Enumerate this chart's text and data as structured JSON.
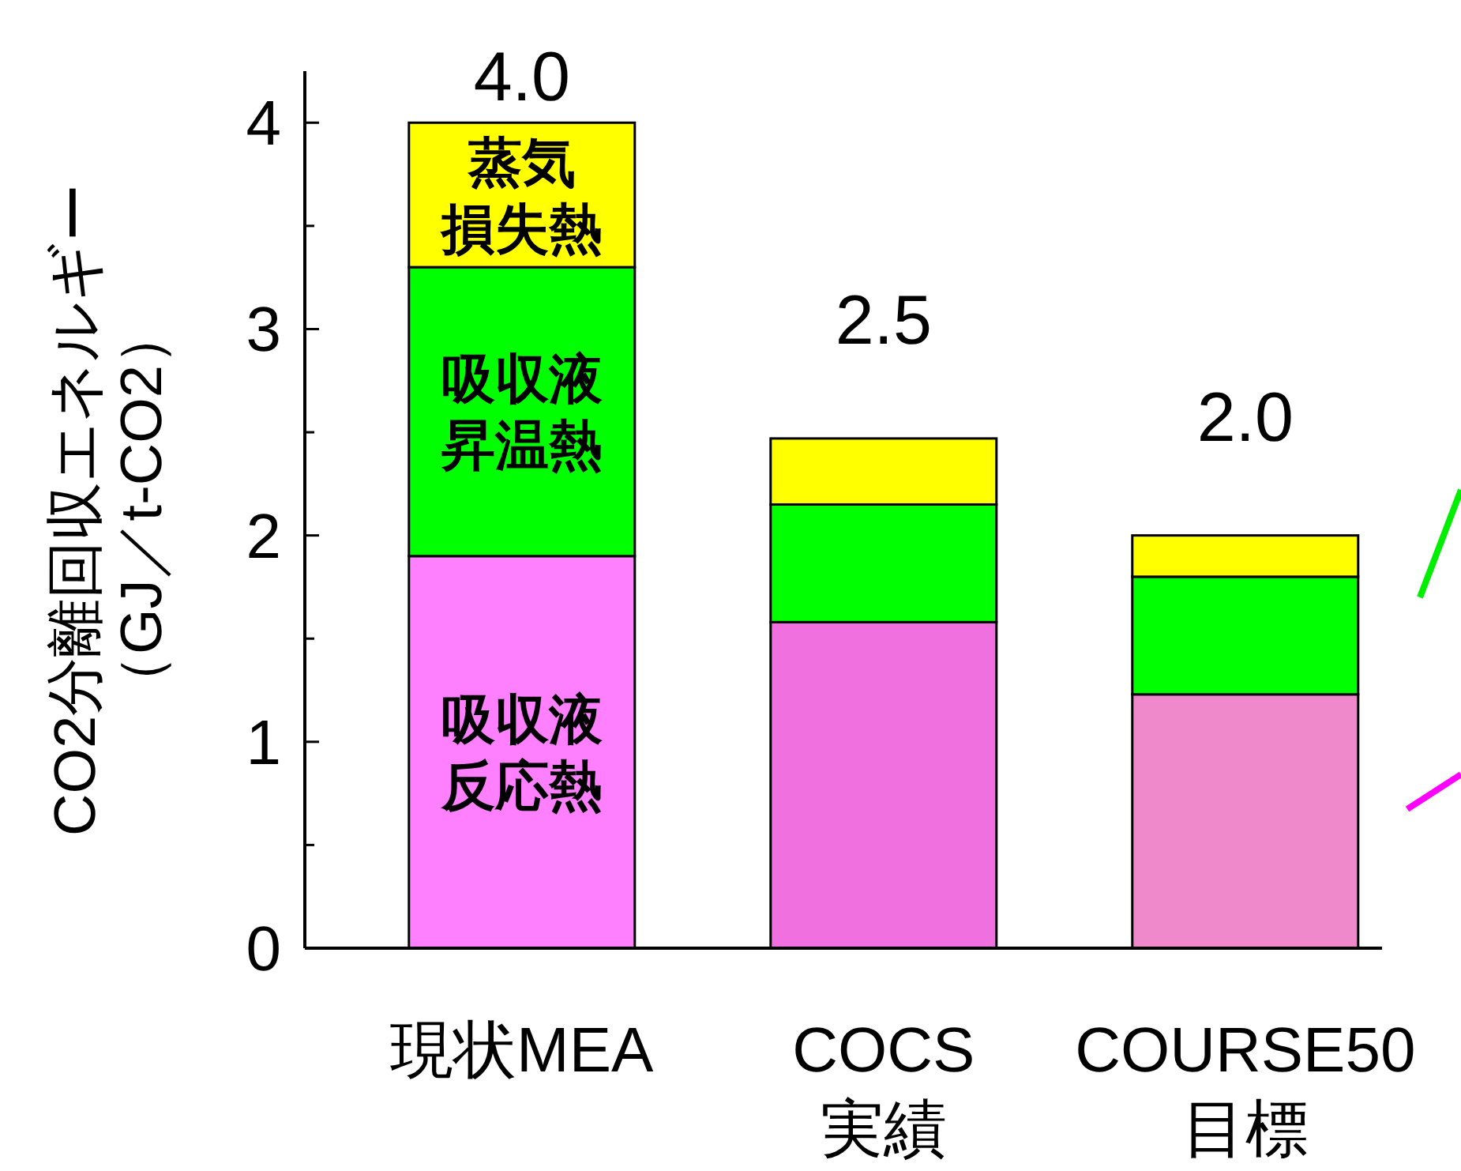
{
  "chart_data": {
    "type": "bar",
    "stacked": true,
    "ylabel": "CO2分離回収エネルギー（GJ／t-CO2）",
    "categories": [
      "現状MEA",
      "COCS\n実績",
      "COURSE50\n目標"
    ],
    "series": [
      {
        "name": "吸収液反応熱",
        "colors": [
          "#ff80ff",
          "#f070e0",
          "#f088cc"
        ],
        "values": [
          1.9,
          1.58,
          1.23
        ]
      },
      {
        "name": "吸収液昇温熱",
        "color": "#00ff00",
        "values": [
          1.4,
          0.57,
          0.57
        ]
      },
      {
        "name": "蒸気損失熱",
        "color": "#ffff00",
        "values": [
          0.7,
          0.32,
          0.2
        ]
      }
    ],
    "totals": [
      "4.0",
      "2.5",
      "2.0"
    ],
    "ylim": [
      0,
      4.25
    ],
    "yticks": [
      0,
      {
        "value": 0.5,
        "label": null
      },
      1,
      {
        "value": 1.5,
        "label": null
      },
      2,
      {
        "value": 2.5,
        "label": null
      },
      3,
      {
        "value": 3.5,
        "label": null
      },
      4
    ],
    "grid": false
  }
}
